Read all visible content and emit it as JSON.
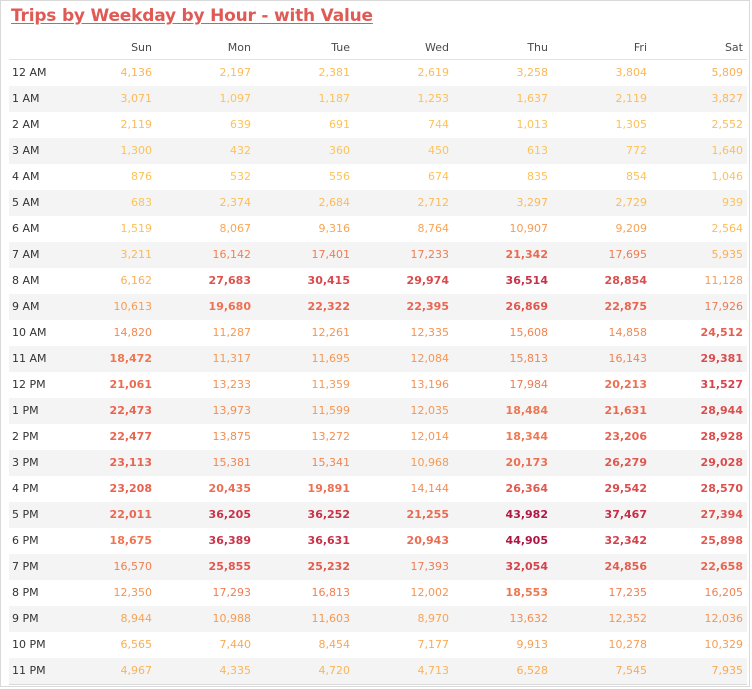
{
  "title": "Trips by Weekday by Hour - with Value",
  "colors": {
    "title": "#e05a55",
    "low": "#fcc45a",
    "high": "#b01a45"
  },
  "chart_data": {
    "type": "heatmap",
    "title": "Trips by Weekday by Hour - with Value",
    "columns": [
      "Sun",
      "Mon",
      "Tue",
      "Wed",
      "Thu",
      "Fri",
      "Sat"
    ],
    "rows": [
      "12 AM",
      "1 AM",
      "2 AM",
      "3 AM",
      "4 AM",
      "5 AM",
      "6 AM",
      "7 AM",
      "8 AM",
      "9 AM",
      "10 AM",
      "11 AM",
      "12 PM",
      "1 PM",
      "2 PM",
      "3 PM",
      "4 PM",
      "5 PM",
      "6 PM",
      "7 PM",
      "8 PM",
      "9 PM",
      "10 PM",
      "11 PM"
    ],
    "values": [
      [
        4136,
        2197,
        2381,
        2619,
        3258,
        3804,
        5809
      ],
      [
        3071,
        1097,
        1187,
        1253,
        1637,
        2119,
        3827
      ],
      [
        2119,
        639,
        691,
        744,
        1013,
        1305,
        2552
      ],
      [
        1300,
        432,
        360,
        450,
        613,
        772,
        1640
      ],
      [
        876,
        532,
        556,
        674,
        835,
        854,
        1046
      ],
      [
        683,
        2374,
        2684,
        2712,
        3297,
        2729,
        939
      ],
      [
        1519,
        8067,
        9316,
        8764,
        10907,
        9209,
        2564
      ],
      [
        3211,
        16142,
        17401,
        17233,
        21342,
        17695,
        5935
      ],
      [
        6162,
        27683,
        30415,
        29974,
        36514,
        28854,
        11128
      ],
      [
        10613,
        19680,
        22322,
        22395,
        26869,
        22875,
        17926
      ],
      [
        14820,
        11287,
        12261,
        12335,
        15608,
        14858,
        24512
      ],
      [
        18472,
        11317,
        11695,
        12084,
        15813,
        16143,
        29381
      ],
      [
        21061,
        13233,
        11359,
        13196,
        17984,
        20213,
        31527
      ],
      [
        22473,
        13973,
        11599,
        12035,
        18484,
        21631,
        28944
      ],
      [
        22477,
        13875,
        13272,
        12014,
        18344,
        23206,
        28928
      ],
      [
        23113,
        15381,
        15341,
        10968,
        20173,
        26279,
        29028
      ],
      [
        23208,
        20435,
        19891,
        14144,
        26364,
        29542,
        28570
      ],
      [
        22011,
        36205,
        36252,
        21255,
        43982,
        37467,
        27394
      ],
      [
        18675,
        36389,
        36631,
        20943,
        44905,
        32342,
        25898
      ],
      [
        16570,
        25855,
        25232,
        17393,
        32054,
        24856,
        22658
      ],
      [
        12350,
        17293,
        16813,
        12002,
        18553,
        17235,
        16205
      ],
      [
        8944,
        10988,
        11603,
        8970,
        13632,
        12352,
        12036
      ],
      [
        6565,
        7440,
        8454,
        7177,
        9913,
        10278,
        10329
      ],
      [
        4967,
        4335,
        4720,
        4713,
        6528,
        7545,
        7935
      ]
    ]
  }
}
